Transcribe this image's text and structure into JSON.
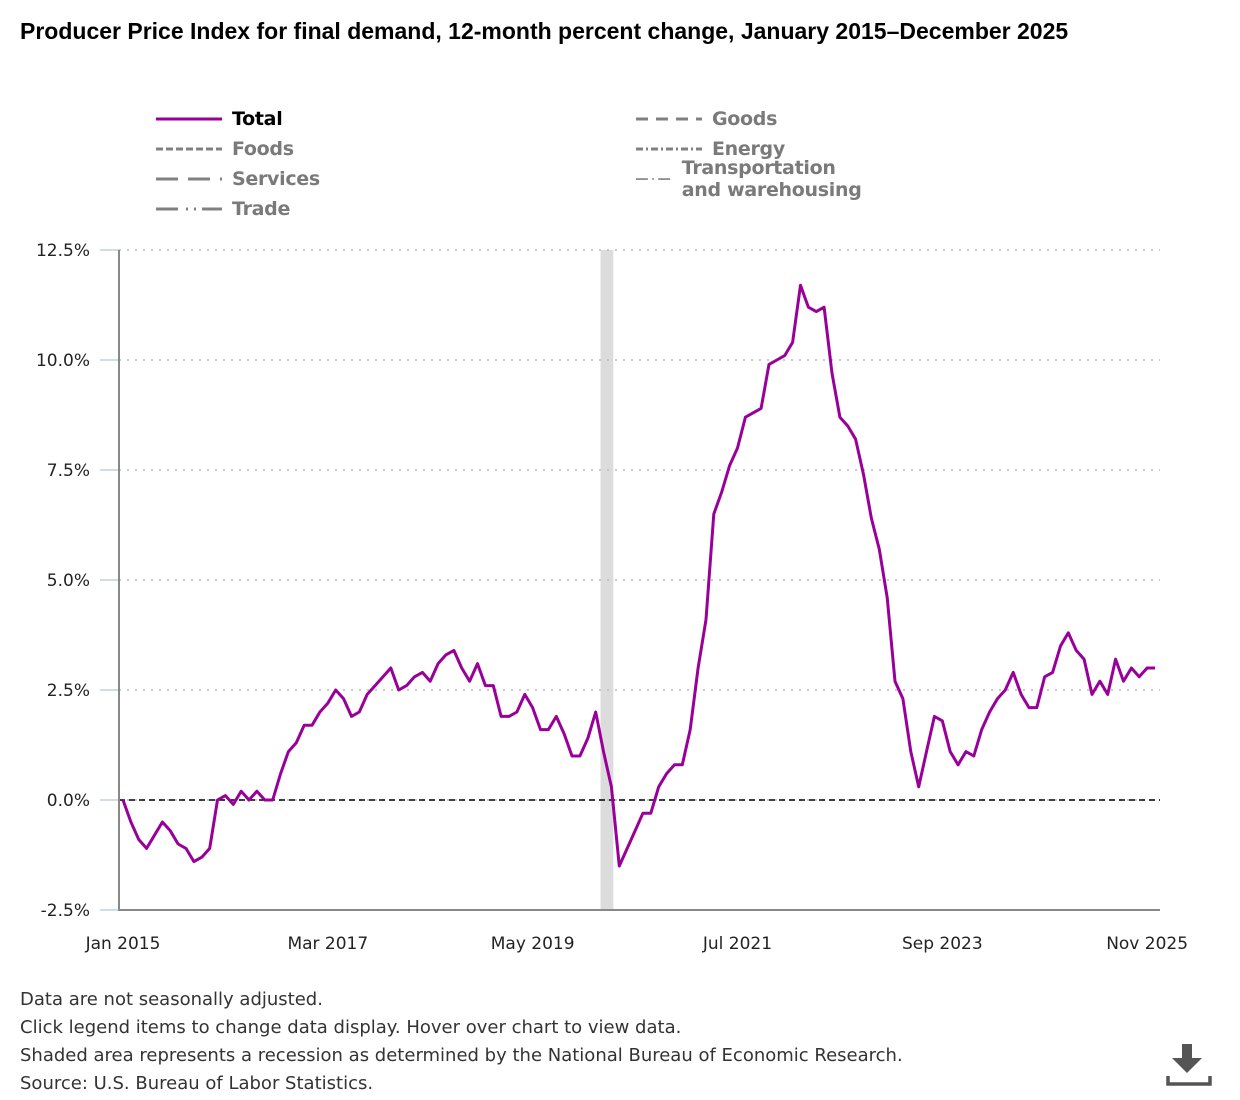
{
  "title": "Producer Price Index for final demand, 12-month percent change, January 2015–December 2025",
  "legend": [
    {
      "label": "Total",
      "active": true,
      "color": "#990099",
      "style": "solid"
    },
    {
      "label": "Goods",
      "active": false,
      "color": "#808080",
      "style": "dash"
    },
    {
      "label": "Foods",
      "active": false,
      "color": "#808080",
      "style": "shortdash"
    },
    {
      "label": "Energy",
      "active": false,
      "color": "#808080",
      "style": "dashdot"
    },
    {
      "label": "Services",
      "active": false,
      "color": "#808080",
      "style": "longdash"
    },
    {
      "label": "Transportation and warehousing",
      "active": false,
      "color": "#808080",
      "style": "longdashdot"
    },
    {
      "label": "Trade",
      "active": false,
      "color": "#808080",
      "style": "longdashdotdot"
    }
  ],
  "footer": {
    "notes": [
      "Data are not seasonally adjusted.",
      "Click legend items to change data display. Hover over chart to view data.",
      "Shaded area represents a recession as determined by the National Bureau of Economic Research.",
      "Source: U.S. Bureau of Labor Statistics."
    ]
  },
  "icons": {
    "download": "download-icon"
  },
  "chart_data": {
    "type": "line",
    "title": "Producer Price Index for final demand, 12-month percent change, January 2015–December 2025",
    "xlabel": "",
    "ylabel": "",
    "start": "Jan 2015",
    "end": "Dec 2025",
    "x_ticks": [
      "Jan 2015",
      "Mar 2017",
      "May 2019",
      "Jul 2021",
      "Sep 2023",
      "Nov 2025"
    ],
    "x_tick_month_index": [
      0,
      26,
      52,
      78,
      104,
      130
    ],
    "y_ticks": [
      "-2.5%",
      "0.0%",
      "2.5%",
      "5.0%",
      "7.5%",
      "10.0%",
      "12.5%"
    ],
    "y_tick_values": [
      -2.5,
      0,
      2.5,
      5,
      7.5,
      10,
      12.5
    ],
    "ylim": [
      -2.5,
      12.5
    ],
    "grid": true,
    "reference_line": 0,
    "recession": {
      "start": "Feb 2020",
      "end": "Apr 2020",
      "start_index": 61,
      "end_index": 63,
      "color": "#dcdcdc"
    },
    "series": [
      {
        "name": "Total",
        "color": "#990099",
        "values": [
          0.0,
          -0.5,
          -0.9,
          -1.1,
          -0.8,
          -0.5,
          -0.7,
          -1.0,
          -1.1,
          -1.4,
          -1.3,
          -1.1,
          0.0,
          0.1,
          -0.1,
          0.2,
          0.0,
          0.2,
          0.0,
          0.0,
          0.6,
          1.1,
          1.3,
          1.7,
          1.7,
          2.0,
          2.2,
          2.5,
          2.3,
          1.9,
          2.0,
          2.4,
          2.6,
          2.8,
          3.0,
          2.5,
          2.6,
          2.8,
          2.9,
          2.7,
          3.1,
          3.3,
          3.4,
          3.0,
          2.7,
          3.1,
          2.6,
          2.6,
          1.9,
          1.9,
          2.0,
          2.4,
          2.1,
          1.6,
          1.6,
          1.9,
          1.5,
          1.0,
          1.0,
          1.4,
          2.0,
          1.1,
          0.3,
          -1.5,
          -1.1,
          -0.7,
          -0.3,
          -0.3,
          0.3,
          0.6,
          0.8,
          0.8,
          1.6,
          3.0,
          4.1,
          6.5,
          7.0,
          7.6,
          8.0,
          8.7,
          8.8,
          8.9,
          9.9,
          10.0,
          10.1,
          10.4,
          11.7,
          11.2,
          11.1,
          11.2,
          9.7,
          8.7,
          8.5,
          8.2,
          7.4,
          6.4,
          5.7,
          4.6,
          2.7,
          2.3,
          1.1,
          0.3,
          1.1,
          1.9,
          1.8,
          1.1,
          0.8,
          1.1,
          1.0,
          1.6,
          2.0,
          2.3,
          2.5,
          2.9,
          2.4,
          2.1,
          2.1,
          2.8,
          2.9,
          3.5,
          3.8,
          3.4,
          3.2,
          2.4,
          2.7,
          2.4,
          3.2,
          2.7,
          3.0,
          2.8,
          3.0,
          3.0
        ]
      }
    ]
  }
}
